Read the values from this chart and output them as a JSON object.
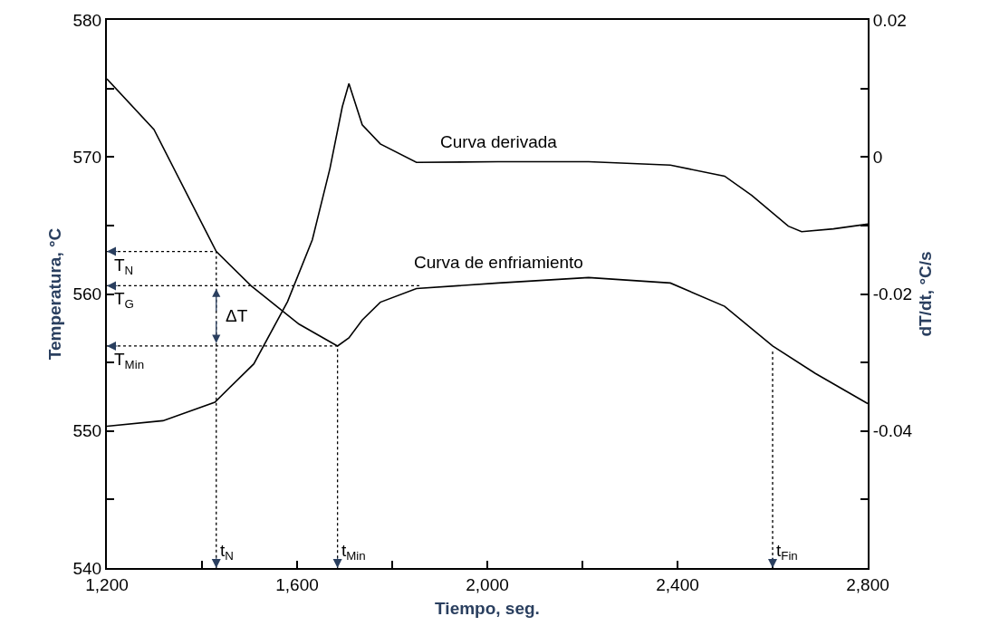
{
  "chart_data": {
    "type": "line",
    "xlabel": "Tiempo, seg.",
    "ylabel": "Temperatura, °C",
    "y2label": "dT/dt, °C/s",
    "xlim": [
      1200,
      2800
    ],
    "xticks": [
      {
        "value": 1200,
        "label": "1,200"
      },
      {
        "value": 1400,
        "label": null
      },
      {
        "value": 1600,
        "label": "1,600"
      },
      {
        "value": 1800,
        "label": null
      },
      {
        "value": 2000,
        "label": "2,000"
      },
      {
        "value": 2200,
        "label": null
      },
      {
        "value": 2400,
        "label": "2,400"
      },
      {
        "value": 2600,
        "label": null
      },
      {
        "value": 2800,
        "label": "2,800"
      }
    ],
    "ylim": [
      540,
      580
    ],
    "yticks": [
      540,
      {
        "value": 545,
        "label": null
      },
      550,
      {
        "value": 555,
        "label": null
      },
      560,
      {
        "value": 565,
        "label": null
      },
      570,
      {
        "value": 575,
        "label": null
      },
      580
    ],
    "y2lim": [
      -0.06,
      0.02
    ],
    "y2ticks": [
      {
        "value": -0.05,
        "label": null
      },
      -0.04,
      {
        "value": -0.03,
        "label": null
      },
      -0.02,
      {
        "value": -0.01,
        "label": null
      },
      0,
      {
        "value": 0.01,
        "label": null
      },
      0.02
    ],
    "legend": false,
    "series": [
      {
        "name": "Curva de enfriamiento",
        "color": "#000000",
        "x": [
          1200,
          1299,
          1430,
          1503,
          1604,
          1685,
          1709,
          1737,
          1775,
          1851,
          2023,
          2213,
          2385,
          2499,
          2600,
          2690,
          2800
        ],
        "values": [
          575.7,
          572.0,
          563.1,
          560.6,
          557.8,
          556.2,
          556.8,
          558.1,
          559.4,
          560.4,
          560.8,
          561.2,
          560.8,
          559.1,
          556.2,
          554.2,
          552.0
        ]
      },
      {
        "name": "Curva derivada",
        "color": "#000000",
        "axis": "y2",
        "x": [
          1200,
          1318,
          1427,
          1509,
          1580,
          1632,
          1669,
          1695,
          1709,
          1737,
          1775,
          1851,
          2023,
          2213,
          2385,
          2499,
          2556,
          2633,
          2661,
          2728,
          2800
        ],
        "values": [
          -0.0393,
          -0.0385,
          -0.0358,
          -0.0302,
          -0.0211,
          -0.0121,
          -0.0017,
          0.0073,
          0.0107,
          0.0047,
          0.0019,
          -0.0008,
          -0.0007,
          -0.0007,
          -0.0012,
          -0.0028,
          -0.0056,
          -0.0101,
          -0.0109,
          -0.0105,
          -0.0098
        ]
      },
      {
        "type": "line",
        "line_style": "dotted",
        "color": "#000000",
        "x": [
          1200,
          1430,
          1430
        ],
        "values": [
          563.1,
          563.1,
          540
        ]
      },
      {
        "type": "line",
        "line_style": "dotted",
        "color": "#000000",
        "x": [
          1200,
          1860
        ],
        "values": [
          560.6,
          560.6
        ]
      },
      {
        "type": "line",
        "line_style": "dotted",
        "color": "#000000",
        "x": [
          1200,
          1685,
          1685
        ],
        "values": [
          556.2,
          556.2,
          540
        ]
      },
      {
        "type": "line",
        "line_style": "dotted",
        "color": "#000000",
        "x": [
          2600,
          2600
        ],
        "values": [
          555.8,
          540
        ]
      }
    ],
    "annotations": [
      {
        "text": "T$_{N}$",
        "x": 1200,
        "y": 563.1
      },
      {
        "text": "T$_{G}$",
        "x": 1200,
        "y": 560.6
      },
      {
        "text": "T$_{Min}$",
        "x": 1200,
        "y": 556.2
      },
      {
        "text": "ΔT",
        "x": 1430,
        "y": 558.4
      },
      {
        "text": "t$_{N}$",
        "x": 1430,
        "y": 540
      },
      {
        "text": "t$_{Min}$",
        "x": 1685,
        "y": 540
      },
      {
        "text": "t$_{Fin}$",
        "x": 2600,
        "y": 540
      }
    ]
  }
}
